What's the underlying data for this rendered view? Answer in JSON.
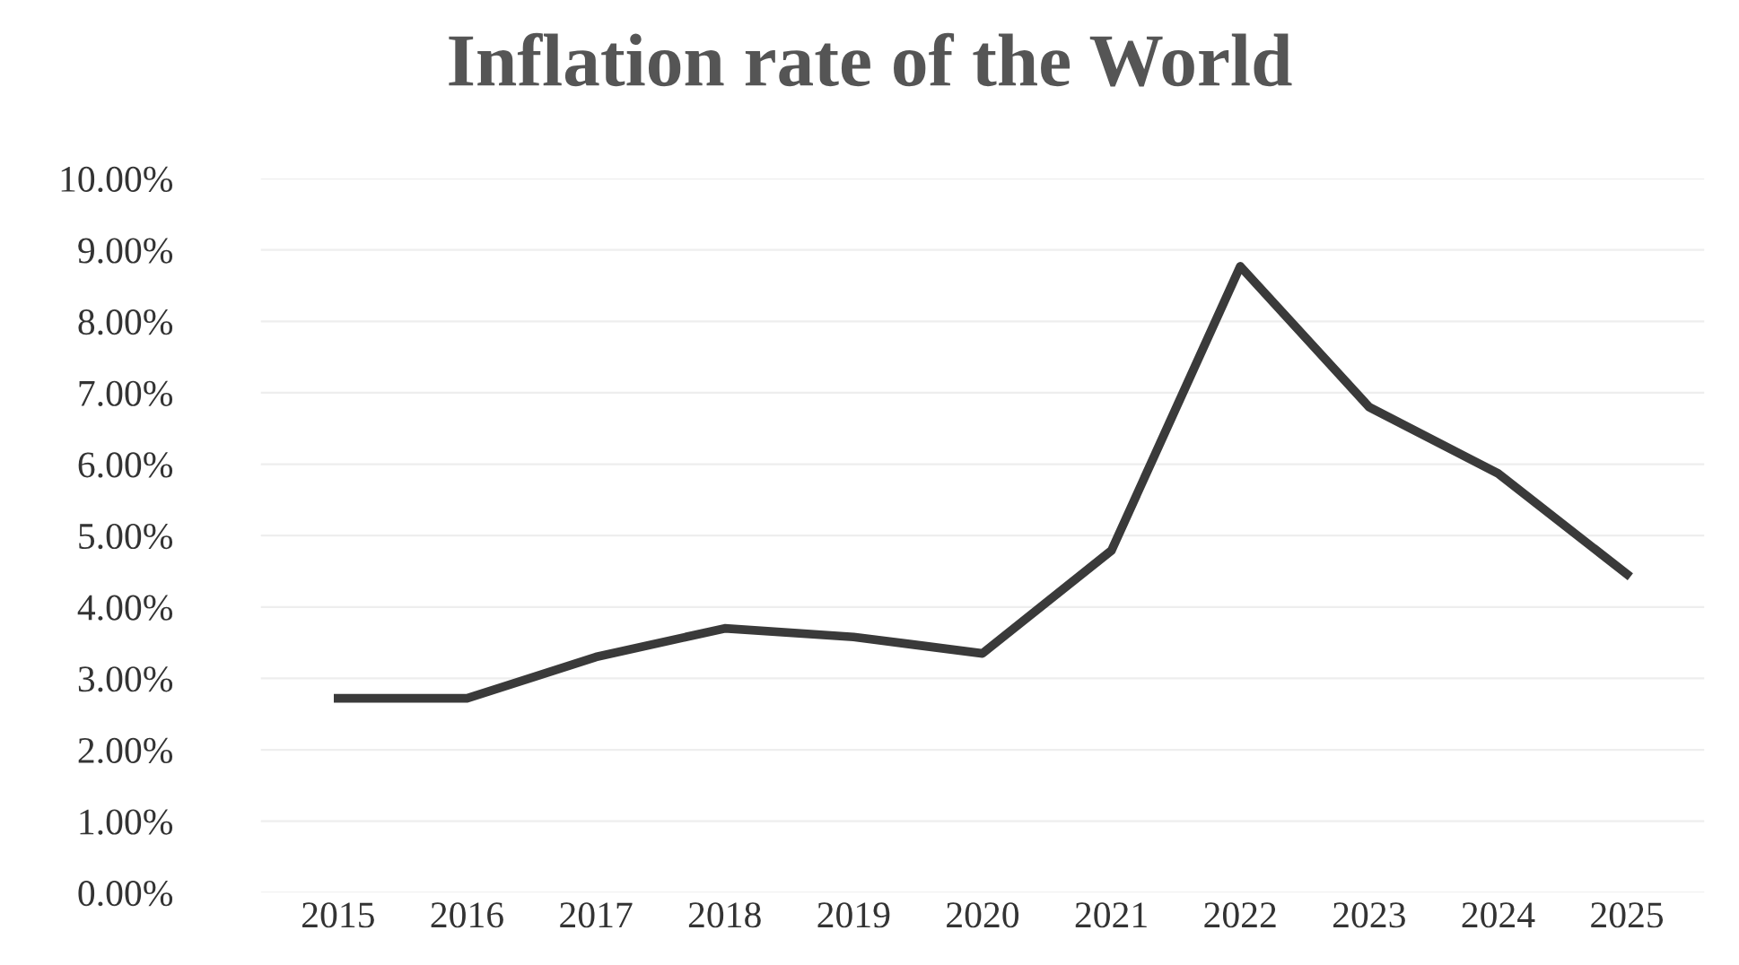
{
  "chart_data": {
    "type": "line",
    "title": "Inflation rate of the World",
    "categories": [
      "2015",
      "2016",
      "2017",
      "2018",
      "2019",
      "2020",
      "2021",
      "2022",
      "2023",
      "2024",
      "2025"
    ],
    "series": [
      {
        "color": "#3a3a3a",
        "values": [
          2.72,
          2.72,
          3.3,
          3.7,
          3.58,
          3.35,
          4.79,
          8.77,
          6.8,
          5.87,
          4.46
        ]
      }
    ],
    "ylim": [
      0,
      10
    ],
    "yticks": [
      {
        "value": 0,
        "label": "0.00%"
      },
      {
        "value": 1,
        "label": "1.00%"
      },
      {
        "value": 2,
        "label": "2.00%"
      },
      {
        "value": 3,
        "label": "3.00%"
      },
      {
        "value": 4,
        "label": "4.00%"
      },
      {
        "value": 5,
        "label": "5.00%"
      },
      {
        "value": 6,
        "label": "6.00%"
      },
      {
        "value": 7,
        "label": "7.00%"
      },
      {
        "value": 8,
        "label": "8.00%"
      },
      {
        "value": 9,
        "label": "9.00%"
      },
      {
        "value": 10,
        "label": "10.00%"
      }
    ],
    "grid": "y",
    "legend": false,
    "marker": "none",
    "line_style": "solid"
  }
}
